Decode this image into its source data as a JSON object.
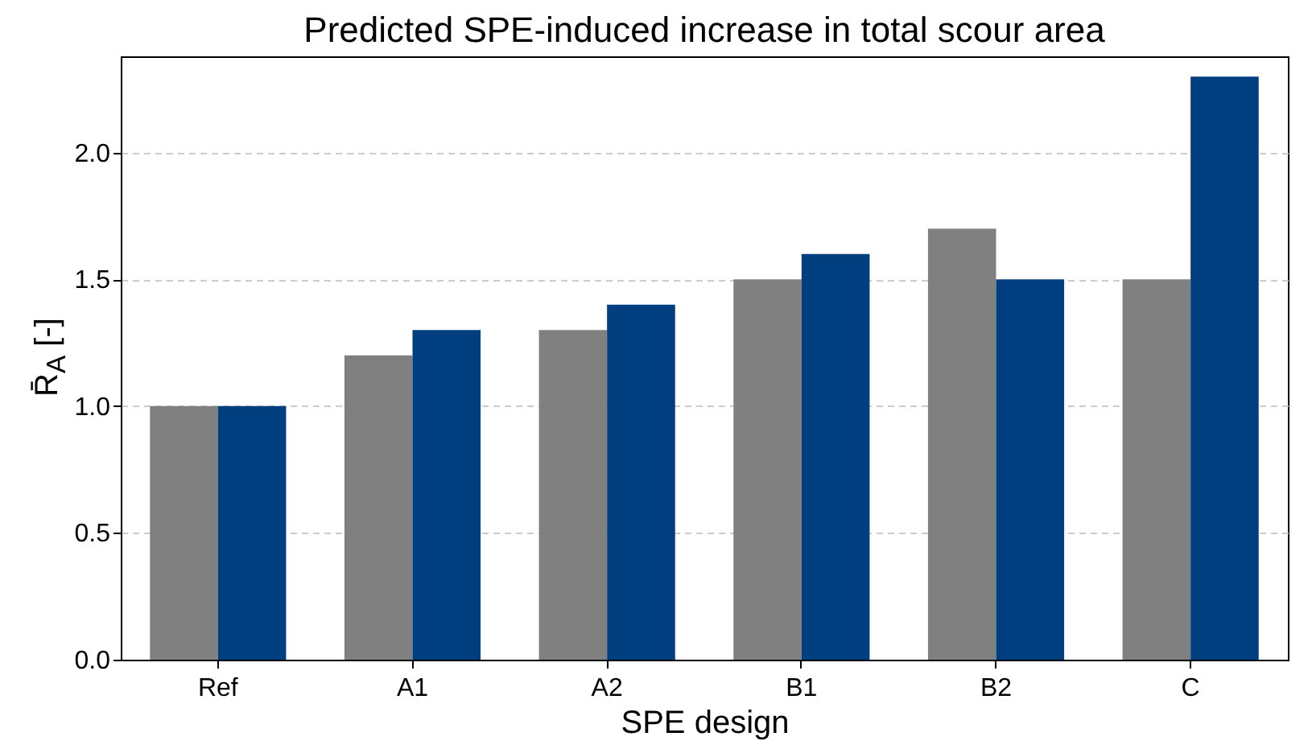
{
  "chart_data": {
    "type": "bar",
    "title": "Predicted SPE-induced increase in total scour area",
    "xlabel": "SPE design",
    "ylabel": "R̄$_{A}$ [-]",
    "categories": [
      "Ref",
      "A1",
      "A2",
      "B1",
      "B2",
      "C"
    ],
    "series": [
      {
        "color": "#808080",
        "values": [
          1.0,
          1.2,
          1.3,
          1.5,
          1.7,
          1.5
        ]
      },
      {
        "color": "#003f7f",
        "values": [
          1.0,
          1.3,
          1.4,
          1.6,
          1.5,
          2.3
        ]
      }
    ],
    "ylim": [
      0,
      2.38
    ],
    "yticks": [
      {
        "value": 0,
        "label": "0.0"
      },
      {
        "value": 0.5,
        "label": "0.5"
      },
      {
        "value": 1,
        "label": "1.0"
      },
      {
        "value": 1.5,
        "label": "1.5"
      },
      {
        "value": 2,
        "label": "2.0"
      }
    ],
    "grid": "y"
  }
}
